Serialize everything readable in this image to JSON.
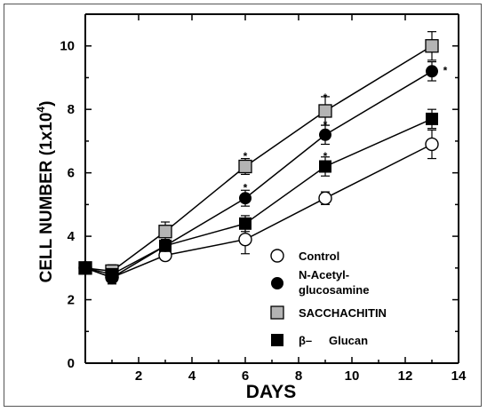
{
  "chart_data": {
    "type": "line",
    "xlabel": "DAYS",
    "ylabel": "CELL NUMBER (1x10",
    "ylabel_sup": "4",
    "ylabel_close": ")",
    "xlim": [
      0,
      14
    ],
    "ylim": [
      0,
      11
    ],
    "x_ticks": [
      2,
      4,
      6,
      8,
      10,
      12,
      14
    ],
    "y_ticks": [
      0,
      2,
      4,
      6,
      8,
      10
    ],
    "legend_position": "bottom-right",
    "series": [
      {
        "name": "Control",
        "marker": "circle-open",
        "x": [
          0,
          1,
          3,
          6,
          9,
          13
        ],
        "y": [
          3.0,
          2.7,
          3.4,
          3.9,
          5.2,
          6.9
        ],
        "err": [
          0.1,
          0.2,
          0.15,
          0.45,
          0.2,
          0.45
        ]
      },
      {
        "name": "N-Acetyl- glucosamine",
        "legend_lines": [
          "N-Acetyl-",
          "glucosamine"
        ],
        "marker": "circle-filled",
        "x": [
          0,
          1,
          3,
          6,
          9,
          13
        ],
        "y": [
          3.0,
          2.7,
          3.7,
          5.2,
          7.2,
          9.2
        ],
        "err": [
          0.1,
          0.2,
          0.2,
          0.25,
          0.3,
          0.3
        ]
      },
      {
        "name": "SACCHACHITIN",
        "marker": "square-gray",
        "x": [
          0,
          1,
          3,
          6,
          9,
          13
        ],
        "y": [
          3.0,
          2.9,
          4.15,
          6.2,
          7.95,
          10.0
        ],
        "err": [
          0.1,
          0.2,
          0.3,
          0.25,
          0.45,
          0.45
        ]
      },
      {
        "name": "β– Glucan",
        "legend_prefix": "β–",
        "legend_suffix": "Glucan",
        "marker": "square-filled",
        "x": [
          0,
          1,
          3,
          6,
          9,
          13
        ],
        "y": [
          3.0,
          2.8,
          3.7,
          4.4,
          6.2,
          7.7
        ],
        "err": [
          0.1,
          0.2,
          0.2,
          0.25,
          0.3,
          0.3
        ]
      }
    ],
    "annotations": [
      {
        "text": "*",
        "x": 6,
        "y": 6.55
      },
      {
        "text": "*",
        "x": 6,
        "y": 5.55
      },
      {
        "text": "*",
        "x": 9,
        "y": 8.4
      },
      {
        "text": "*",
        "x": 9,
        "y": 7.55
      },
      {
        "text": "*",
        "x": 9,
        "y": 6.55
      },
      {
        "text": "*",
        "x": 13.5,
        "y": 9.25
      }
    ]
  }
}
